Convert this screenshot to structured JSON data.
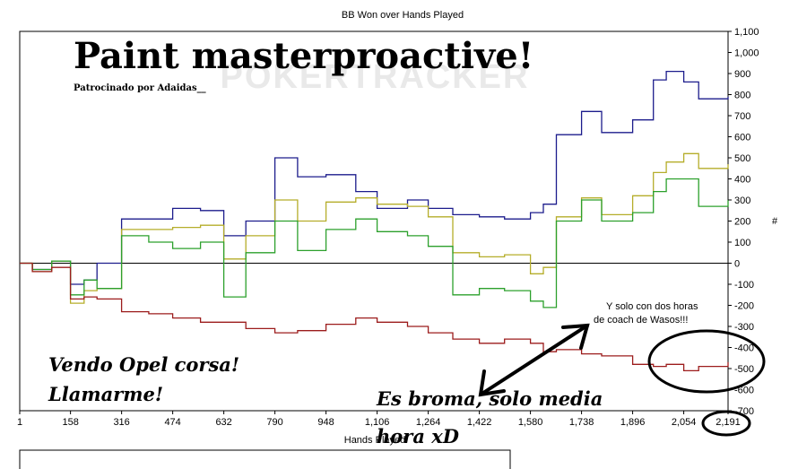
{
  "chart_data": {
    "type": "line",
    "title": "BB Won over Hands Played",
    "xlabel": "Hands Played",
    "ylabel": "#",
    "xlim": [
      1,
      2191
    ],
    "ylim": [
      -700,
      1100
    ],
    "x_ticks": [
      1,
      158,
      316,
      474,
      632,
      790,
      948,
      1106,
      1264,
      1422,
      1580,
      1738,
      1896,
      2054,
      2191
    ],
    "x_tick_labels": [
      "1",
      "158",
      "316",
      "474",
      "632",
      "790",
      "948",
      "1,106",
      "1,264",
      "1,422",
      "1,580",
      "1,738",
      "1,896",
      "2,054",
      "2,191"
    ],
    "y_ticks": [
      -700,
      -600,
      -500,
      -400,
      -300,
      -200,
      -100,
      0,
      100,
      200,
      300,
      400,
      500,
      600,
      700,
      800,
      900,
      1000,
      1100
    ],
    "y_tick_labels": [
      "-700",
      "-600",
      "-500",
      "-400",
      "-300",
      "-200",
      "-100",
      "0",
      "100",
      "200",
      "300",
      "400",
      "500",
      "600",
      "700",
      "800",
      "900",
      "1,000",
      "1,100"
    ],
    "grid": false,
    "colors": {
      "navy": "#1c1c8c",
      "olive": "#b5ad2a",
      "green": "#2ca02c",
      "red": "#9c1c1c"
    },
    "series": [
      {
        "color": "navy",
        "points": [
          [
            1,
            0
          ],
          [
            40,
            -30
          ],
          [
            100,
            10
          ],
          [
            158,
            -100
          ],
          [
            200,
            -80
          ],
          [
            240,
            0
          ],
          [
            316,
            210
          ],
          [
            400,
            210
          ],
          [
            474,
            260
          ],
          [
            560,
            250
          ],
          [
            632,
            130
          ],
          [
            700,
            200
          ],
          [
            790,
            500
          ],
          [
            860,
            410
          ],
          [
            948,
            420
          ],
          [
            1040,
            340
          ],
          [
            1106,
            260
          ],
          [
            1200,
            300
          ],
          [
            1264,
            260
          ],
          [
            1340,
            230
          ],
          [
            1422,
            220
          ],
          [
            1500,
            210
          ],
          [
            1580,
            240
          ],
          [
            1620,
            280
          ],
          [
            1660,
            610
          ],
          [
            1738,
            720
          ],
          [
            1800,
            620
          ],
          [
            1896,
            680
          ],
          [
            1960,
            870
          ],
          [
            2000,
            910
          ],
          [
            2054,
            860
          ],
          [
            2100,
            780
          ],
          [
            2191,
            790
          ]
        ]
      },
      {
        "color": "olive",
        "points": [
          [
            1,
            0
          ],
          [
            40,
            -40
          ],
          [
            100,
            10
          ],
          [
            158,
            -190
          ],
          [
            200,
            -130
          ],
          [
            240,
            -120
          ],
          [
            316,
            160
          ],
          [
            400,
            160
          ],
          [
            474,
            170
          ],
          [
            560,
            180
          ],
          [
            632,
            20
          ],
          [
            700,
            130
          ],
          [
            790,
            300
          ],
          [
            860,
            200
          ],
          [
            948,
            290
          ],
          [
            1040,
            310
          ],
          [
            1106,
            280
          ],
          [
            1200,
            270
          ],
          [
            1264,
            220
          ],
          [
            1340,
            50
          ],
          [
            1422,
            30
          ],
          [
            1500,
            40
          ],
          [
            1580,
            -50
          ],
          [
            1620,
            -20
          ],
          [
            1660,
            220
          ],
          [
            1738,
            310
          ],
          [
            1800,
            230
          ],
          [
            1896,
            320
          ],
          [
            1960,
            430
          ],
          [
            2000,
            480
          ],
          [
            2054,
            520
          ],
          [
            2100,
            450
          ],
          [
            2191,
            470
          ]
        ]
      },
      {
        "color": "green",
        "points": [
          [
            1,
            0
          ],
          [
            40,
            -30
          ],
          [
            100,
            10
          ],
          [
            158,
            -150
          ],
          [
            200,
            -80
          ],
          [
            240,
            -120
          ],
          [
            316,
            130
          ],
          [
            400,
            100
          ],
          [
            474,
            70
          ],
          [
            560,
            100
          ],
          [
            632,
            -160
          ],
          [
            700,
            50
          ],
          [
            790,
            200
          ],
          [
            860,
            60
          ],
          [
            948,
            160
          ],
          [
            1040,
            210
          ],
          [
            1106,
            150
          ],
          [
            1200,
            130
          ],
          [
            1264,
            80
          ],
          [
            1340,
            -150
          ],
          [
            1422,
            -120
          ],
          [
            1500,
            -130
          ],
          [
            1580,
            -180
          ],
          [
            1620,
            -210
          ],
          [
            1660,
            200
          ],
          [
            1738,
            300
          ],
          [
            1800,
            200
          ],
          [
            1896,
            240
          ],
          [
            1960,
            340
          ],
          [
            2000,
            400
          ],
          [
            2054,
            400
          ],
          [
            2100,
            270
          ],
          [
            2191,
            300
          ]
        ]
      },
      {
        "color": "red",
        "points": [
          [
            1,
            0
          ],
          [
            40,
            -40
          ],
          [
            100,
            -20
          ],
          [
            158,
            -170
          ],
          [
            200,
            -160
          ],
          [
            240,
            -170
          ],
          [
            316,
            -230
          ],
          [
            400,
            -240
          ],
          [
            474,
            -260
          ],
          [
            560,
            -280
          ],
          [
            632,
            -280
          ],
          [
            700,
            -310
          ],
          [
            790,
            -330
          ],
          [
            860,
            -320
          ],
          [
            948,
            -290
          ],
          [
            1040,
            -260
          ],
          [
            1106,
            -280
          ],
          [
            1200,
            -300
          ],
          [
            1264,
            -330
          ],
          [
            1340,
            -360
          ],
          [
            1422,
            -380
          ],
          [
            1500,
            -360
          ],
          [
            1580,
            -380
          ],
          [
            1620,
            -420
          ],
          [
            1660,
            -410
          ],
          [
            1738,
            -430
          ],
          [
            1800,
            -440
          ],
          [
            1896,
            -480
          ],
          [
            1960,
            -490
          ],
          [
            2000,
            -480
          ],
          [
            2054,
            -510
          ],
          [
            2100,
            -490
          ],
          [
            2191,
            -470
          ]
        ]
      }
    ]
  },
  "watermark": "POKERTRACKER",
  "overlay": {
    "headline": "Paint masterproactive!",
    "sponsor": "Patrocinado por Adaidas__",
    "sale_line1": "Vendo Opel corsa!",
    "sale_line2": "Llamarme!",
    "joke_line1": "Es broma, solo media",
    "joke_line2": "hora xD",
    "coach_line1": "Y solo con dos horas",
    "coach_line2": "de coach de Wasos!!!"
  }
}
